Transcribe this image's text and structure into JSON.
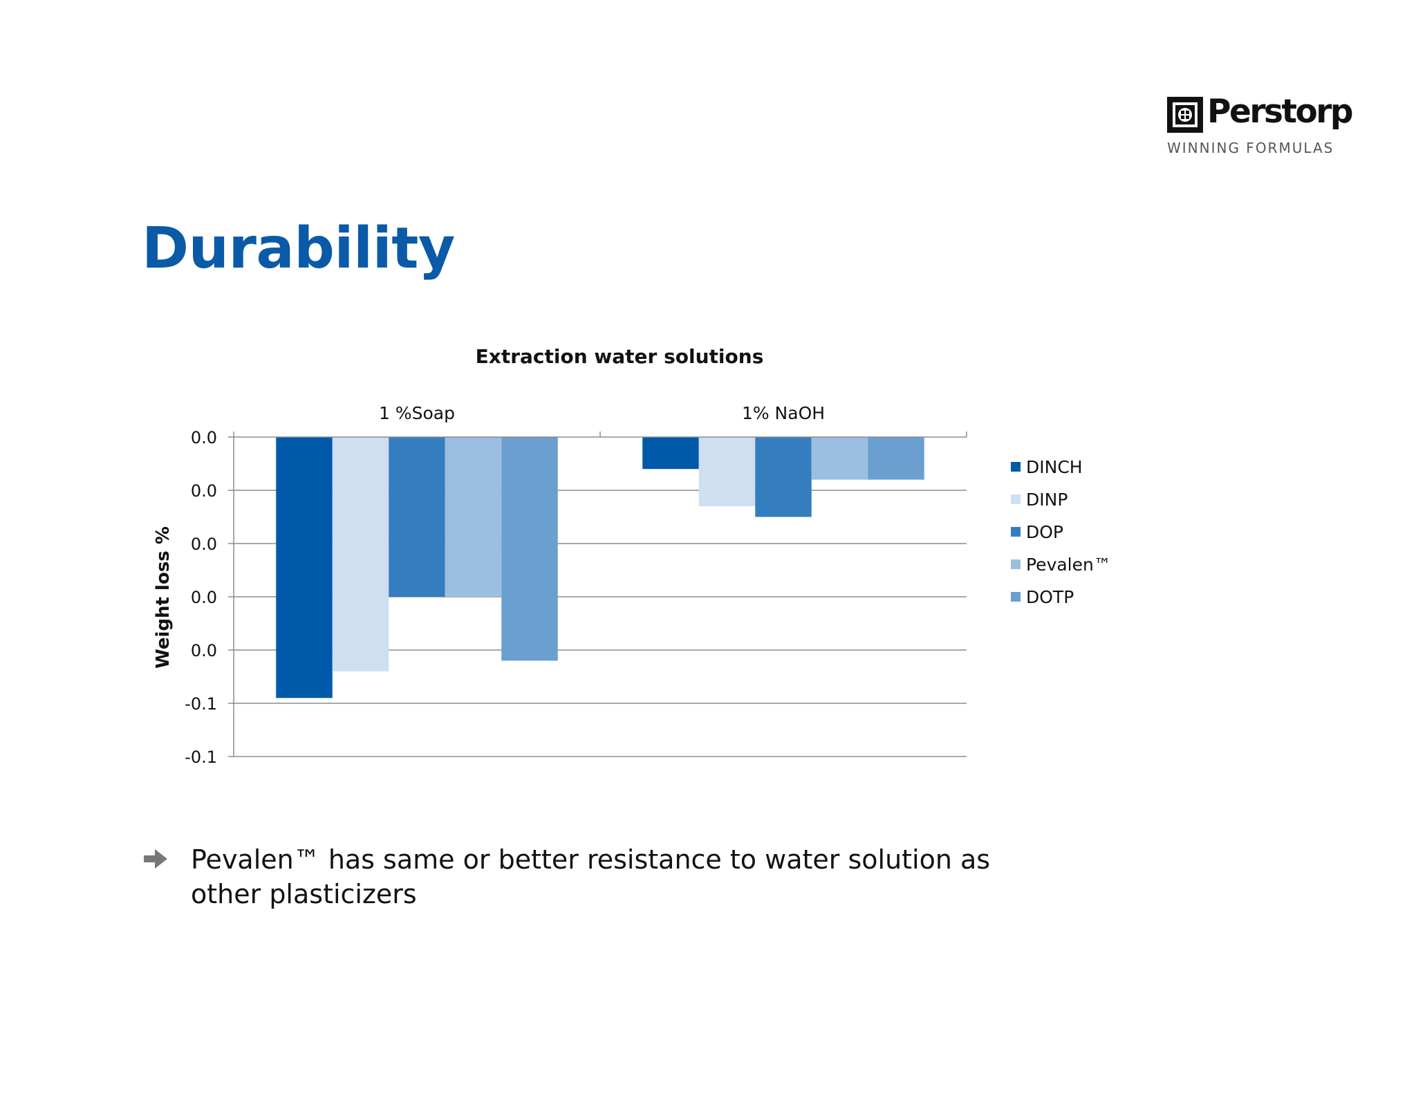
{
  "logo": {
    "name": "Perstorp",
    "tagline": "WINNING FORMULAS"
  },
  "slide": {
    "title": "Durability"
  },
  "bullet": {
    "text": "Pevalen™ has same or better resistance to water solution as other plasticizers"
  },
  "chart_data": {
    "type": "bar",
    "title": "Extraction water solutions",
    "ylabel": "Weight loss %",
    "xlabel": "",
    "categories": [
      "1 %Soap",
      "1% NaOH"
    ],
    "category_axis_position": "top",
    "y_tick_labels": [
      "0.0",
      "0.0",
      "0.0",
      "0.0",
      "0.0",
      "-0.1",
      "-0.1"
    ],
    "ylim": [
      -0.12,
      0
    ],
    "grid": true,
    "legend": "right",
    "series": [
      {
        "name": "DINCH",
        "color": "#005aa9",
        "values": [
          -0.098,
          -0.012
        ]
      },
      {
        "name": "DINP",
        "color": "#cddff0",
        "values": [
          -0.088,
          -0.026
        ]
      },
      {
        "name": "DOP",
        "color": "#347dbf",
        "values": [
          -0.06,
          -0.03
        ]
      },
      {
        "name": "Pevalen™",
        "color": "#9bbfe0",
        "values": [
          -0.06,
          -0.016
        ]
      },
      {
        "name": "DOTP",
        "color": "#6a9fd0",
        "values": [
          -0.084,
          -0.016
        ]
      }
    ]
  }
}
